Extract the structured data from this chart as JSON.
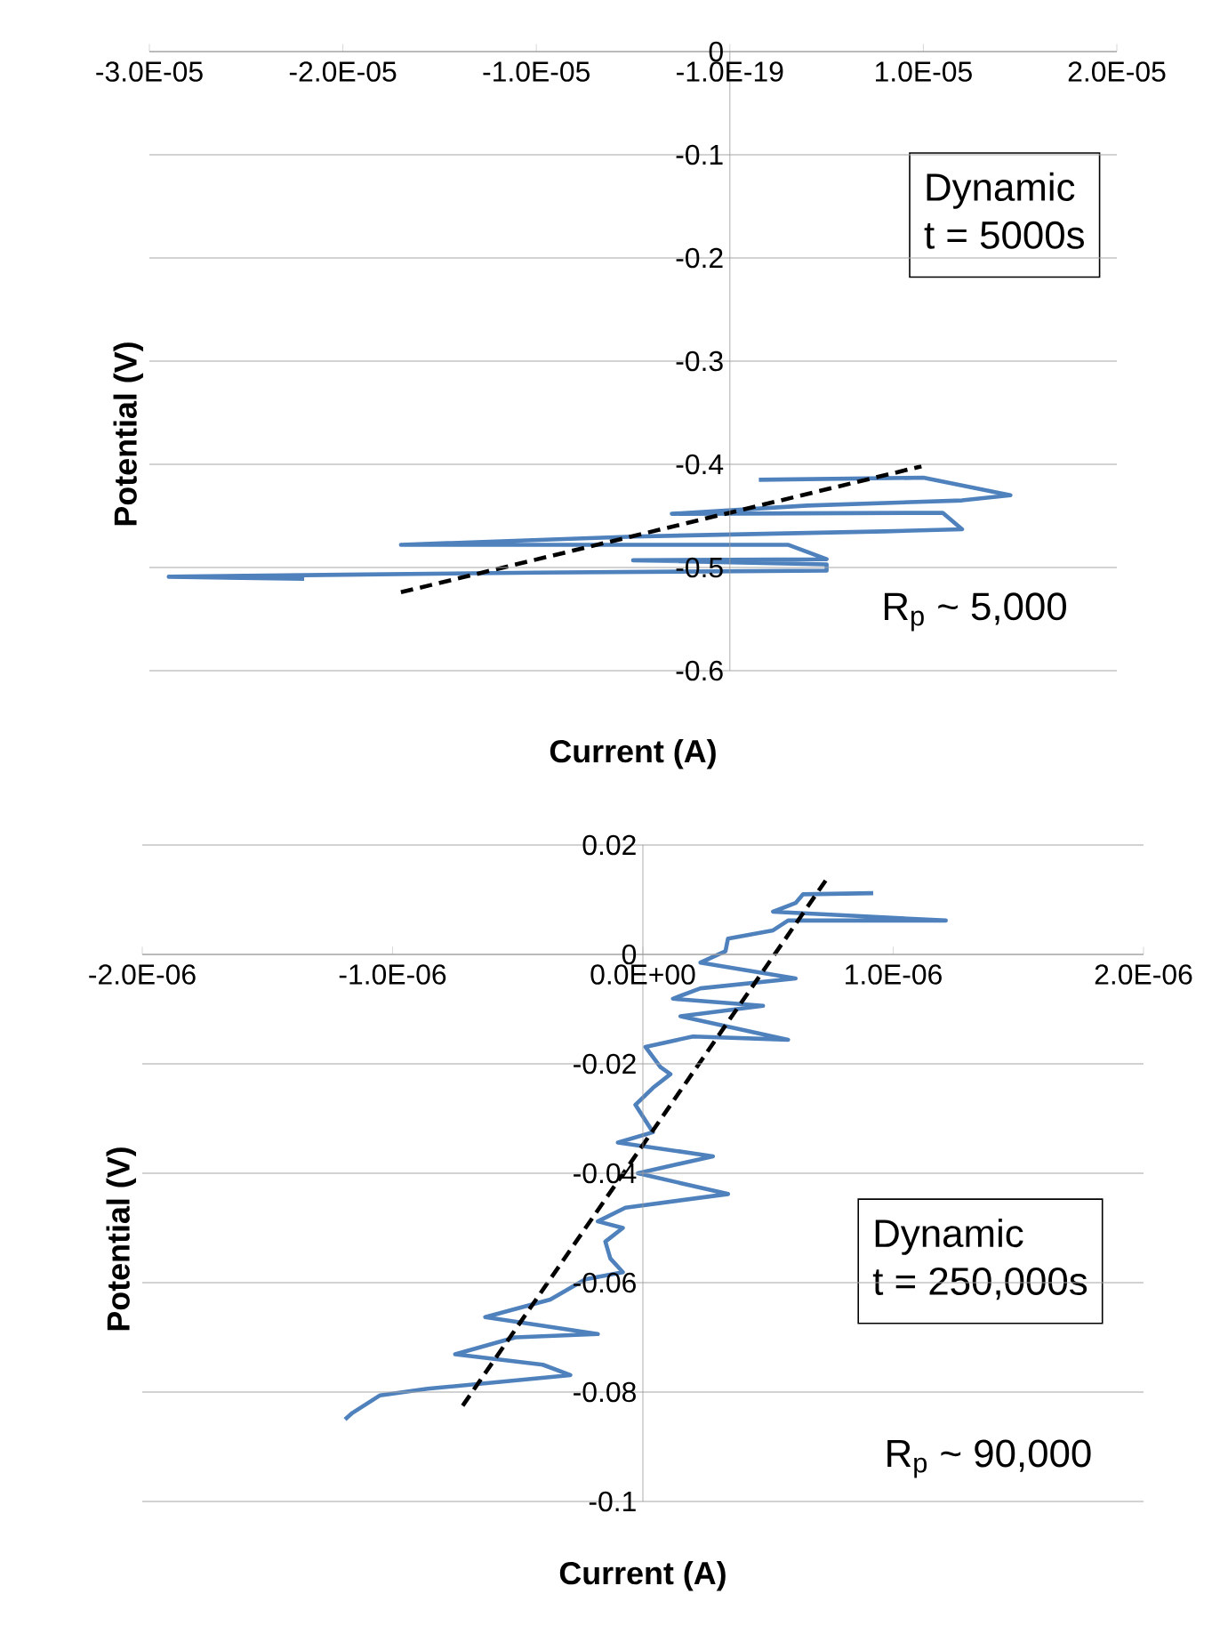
{
  "chart_data": [
    {
      "type": "line",
      "xlabel": "Current (A)",
      "ylabel": "Potential (V)",
      "xlim": [
        -3e-05,
        2e-05
      ],
      "ylim": [
        -0.6,
        0
      ],
      "xticks": [
        {
          "value": -3e-05,
          "label": "-3.0E-05"
        },
        {
          "value": -2e-05,
          "label": "-2.0E-05"
        },
        {
          "value": -1e-05,
          "label": "-1.0E-05"
        },
        {
          "value": 0,
          "label": "-1.0E-19"
        },
        {
          "value": 1e-05,
          "label": "1.0E-05"
        },
        {
          "value": 2e-05,
          "label": "2.0E-05"
        }
      ],
      "yticks": [
        0,
        -0.1,
        -0.2,
        -0.3,
        -0.4,
        -0.5,
        -0.6
      ],
      "grid": "y",
      "series": [
        {
          "color": "#4f81bd",
          "x": [
            1.5e-06,
            1e-05,
            1.45e-05,
            1.2e-05,
            4e-06,
            -3e-06,
            1.1e-05,
            1.2e-05,
            8e-06,
            -5e-06,
            -1.7e-05,
            3e-06,
            5e-06,
            -5e-06,
            5e-06,
            5e-06,
            -1e-05,
            -2e-05,
            -2.9e-05,
            -2.2e-05
          ],
          "values": [
            -0.415,
            -0.413,
            -0.43,
            -0.435,
            -0.44,
            -0.448,
            -0.447,
            -0.463,
            -0.465,
            -0.47,
            -0.478,
            -0.478,
            -0.492,
            -0.493,
            -0.497,
            -0.503,
            -0.505,
            -0.507,
            -0.509,
            -0.511
          ]
        },
        {
          "type": "line",
          "color": "#000000",
          "line_style": "dashed",
          "x": [
            -1.7e-05,
            9.9e-06
          ],
          "values": [
            -0.524,
            -0.402
          ]
        }
      ],
      "annotations": [
        "Dynamic",
        "t = 5000s",
        "R$_{p}$ ~ 5,000"
      ]
    },
    {
      "type": "line",
      "xlabel": "Current (A)",
      "ylabel": "Potential (V)",
      "xlim": [
        -2e-06,
        2e-06
      ],
      "ylim": [
        -0.1,
        0.02
      ],
      "xticks": [
        {
          "value": -2e-06,
          "label": "-2.0E-06"
        },
        {
          "value": -1e-06,
          "label": "-1.0E-06"
        },
        {
          "value": 0,
          "label": "0.0E+00"
        },
        {
          "value": 1e-06,
          "label": "1.0E-06"
        },
        {
          "value": 2e-06,
          "label": "2.0E-06"
        }
      ],
      "yticks": [
        0.02,
        0,
        -0.02,
        -0.04,
        -0.06,
        -0.08,
        -0.1
      ],
      "grid": "y",
      "series": [
        {
          "color": "#4f81bd",
          "x": [
            9.2e-07,
            6.4e-07,
            6.1e-07,
            5.2e-07,
            1.21e-06,
            5.8e-07,
            5.2e-07,
            3.4e-07,
            3.3e-07,
            2.3e-07,
            6.1e-07,
            2.3e-07,
            1.2e-07,
            4.8e-07,
            1.5e-07,
            5.8e-07,
            2e-07,
            1e-08,
            7e-08,
            1.1e-07,
            4e-08,
            -3e-08,
            4e-08,
            -1e-07,
            2.8e-07,
            -2e-08,
            3.4e-07,
            -7e-08,
            -1.8e-07,
            -8e-08,
            -1.5e-07,
            -1.3e-07,
            -8e-08,
            -2.3e-07,
            -3.7e-07,
            -6.3e-07,
            -1.8e-07,
            -5.1e-07,
            -7.5e-07,
            -4e-07,
            -2.9e-07,
            -8.6e-07,
            -1.05e-06,
            -1.16e-06,
            -1.19e-06
          ],
          "values": [
            0.0112,
            0.011,
            0.0094,
            0.0078,
            0.0062,
            0.0062,
            0.0044,
            0.0029,
            0.0006,
            -0.0015,
            -0.0044,
            -0.0062,
            -0.0081,
            -0.0094,
            -0.0113,
            -0.0156,
            -0.015,
            -0.0169,
            -0.0206,
            -0.0219,
            -0.0244,
            -0.0275,
            -0.0325,
            -0.0344,
            -0.0369,
            -0.04,
            -0.0438,
            -0.0463,
            -0.0488,
            -0.05,
            -0.0525,
            -0.0556,
            -0.0581,
            -0.0594,
            -0.0631,
            -0.0663,
            -0.0694,
            -0.07,
            -0.0731,
            -0.075,
            -0.0769,
            -0.0794,
            -0.0806,
            -0.0838,
            -0.085
          ]
        },
        {
          "type": "line",
          "color": "#000000",
          "line_style": "dashed",
          "x": [
            -7.2e-07,
            7.3e-07
          ],
          "values": [
            -0.0825,
            0.0135
          ]
        }
      ],
      "annotations": [
        "Dynamic",
        "t = 250,000s",
        "R$_{p}$ ~ 90,000"
      ]
    }
  ]
}
